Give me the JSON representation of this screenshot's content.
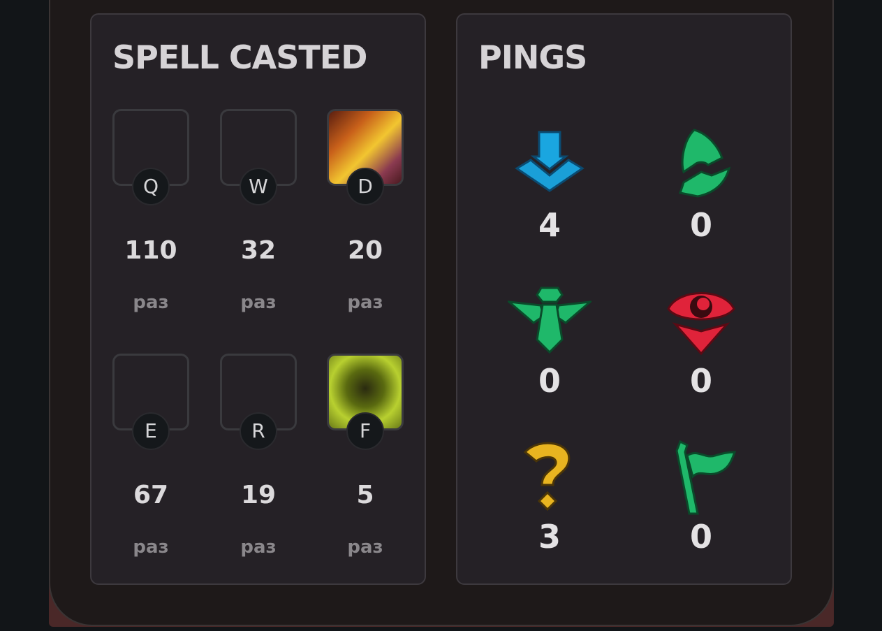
{
  "spells": {
    "title": "SPELL CASTED",
    "unit": "раз",
    "items": [
      {
        "key": "Q",
        "count": "110",
        "icon": "empty"
      },
      {
        "key": "W",
        "count": "32",
        "icon": "empty"
      },
      {
        "key": "D",
        "count": "20",
        "icon": "flash-spell-art"
      },
      {
        "key": "E",
        "count": "67",
        "icon": "empty"
      },
      {
        "key": "R",
        "count": "19",
        "icon": "empty"
      },
      {
        "key": "F",
        "count": "5",
        "icon": "ghost-spell-art"
      }
    ]
  },
  "pings": {
    "title": "PINGS",
    "items": [
      {
        "icon": "on-my-way-icon",
        "count": "4",
        "color": "#1a9fd8"
      },
      {
        "icon": "bait-icon",
        "count": "0",
        "color": "#1fb86a"
      },
      {
        "icon": "assist-icon",
        "count": "0",
        "color": "#1fb86a"
      },
      {
        "icon": "enemy-vision-icon",
        "count": "0",
        "color": "#e0233a"
      },
      {
        "icon": "missing-icon",
        "count": "3",
        "color": "#e8b420"
      },
      {
        "icon": "push-icon",
        "count": "0",
        "color": "#1fb86a"
      }
    ]
  }
}
